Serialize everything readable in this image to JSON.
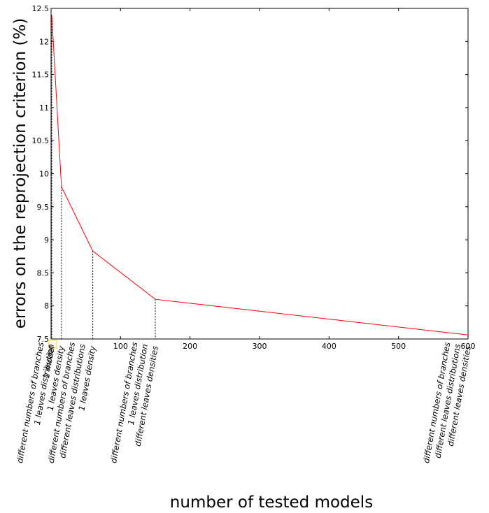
{
  "chart_data": {
    "type": "line",
    "title": "",
    "xlabel": "number of tested models",
    "ylabel": "errors on the reprojection criterion (%)",
    "xlim": [
      0,
      600
    ],
    "ylim": [
      7.5,
      12.5
    ],
    "x_ticks": [
      100,
      200,
      300,
      400,
      500,
      600
    ],
    "x_tick_labels": [
      "100",
      "200",
      "300",
      "400",
      "500",
      "600"
    ],
    "y_ticks": [
      7.5,
      8,
      8.5,
      9,
      9.5,
      10,
      10.5,
      11,
      11.5,
      12,
      12.5
    ],
    "y_tick_labels": [
      "7.5",
      "8",
      "8.5",
      "9",
      "9.5",
      "10",
      "10.5",
      "11",
      "11.5",
      "12",
      "12.5"
    ],
    "grid": false,
    "line_color": "#ff0000",
    "marker_color": "#ffd700",
    "series": [
      {
        "x": [
          1,
          15,
          60,
          150,
          600
        ],
        "y": [
          12.4,
          9.8,
          8.83,
          8.1,
          7.56
        ]
      }
    ],
    "annotations": [
      {
        "x": 1,
        "y": 12.4,
        "lines": [
          "1 model"
        ]
      },
      {
        "x": 15,
        "y": 9.8,
        "lines": [
          "different numbers of branches",
          "1 leaves distribution",
          "1 leaves density"
        ]
      },
      {
        "x": 60,
        "y": 8.83,
        "lines": [
          "different numbers of branches",
          "different leaves distributions",
          "1 leaves density"
        ]
      },
      {
        "x": 150,
        "y": 8.1,
        "lines": [
          "different numbers of branches",
          "1 leaves distribution",
          "different leaves densities"
        ]
      },
      {
        "x": 600,
        "y": 7.56,
        "lines": [
          "different numbers of branches",
          "different leaves distributions",
          "different leaves densities"
        ]
      }
    ]
  }
}
